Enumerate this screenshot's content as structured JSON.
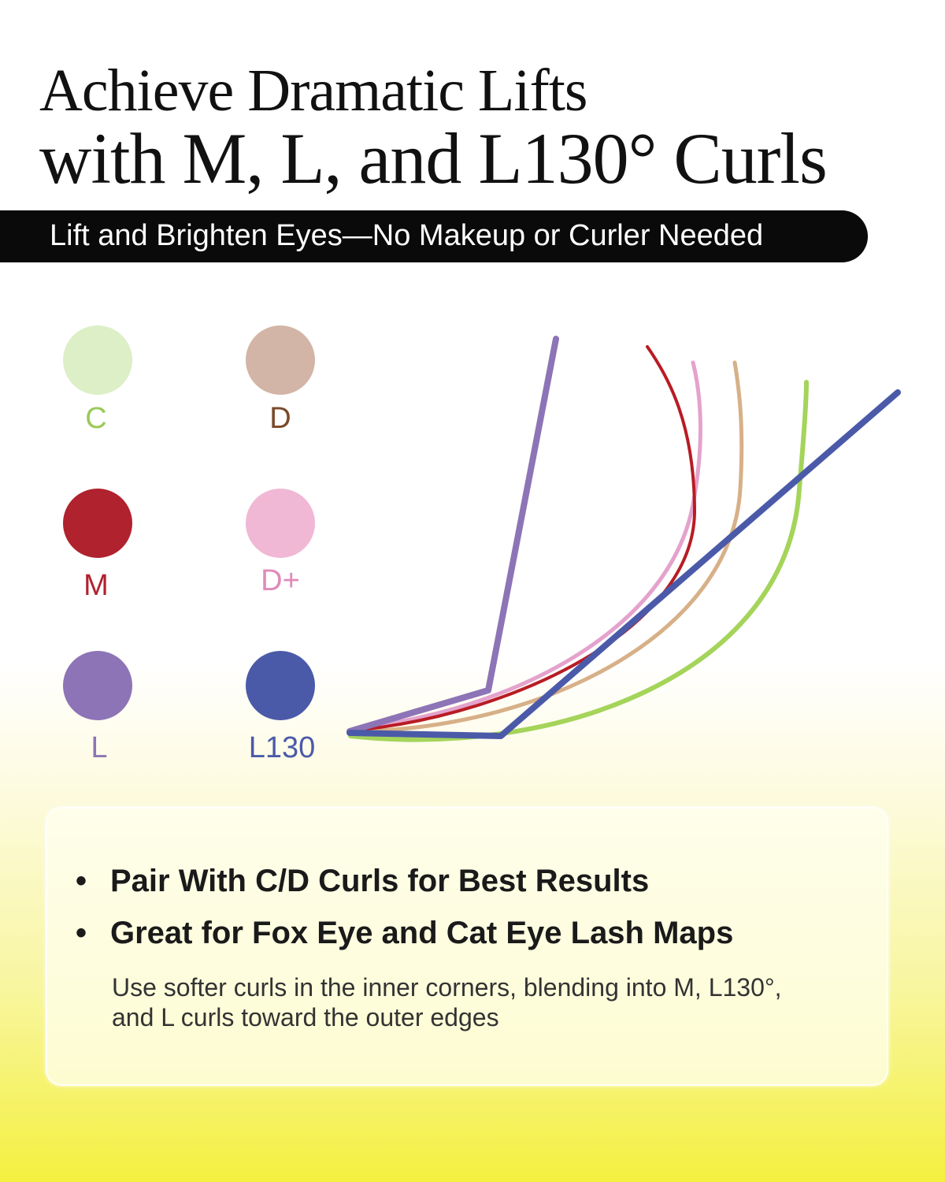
{
  "title": {
    "line1": "Achieve Dramatic Lifts",
    "line2": "with M, L, and L130° Curls"
  },
  "banner": "Lift and Brighten Eyes—No Makeup or Curler Needed",
  "curls": [
    {
      "label": "C",
      "color": "#dcefc6",
      "text_color": "#9bc95a"
    },
    {
      "label": "D",
      "color": "#d2b5a6",
      "text_color": "#7a4a2a"
    },
    {
      "label": "M",
      "color": "#b0222e",
      "text_color": "#b0222e"
    },
    {
      "label": "D+",
      "color": "#f0b8d4",
      "text_color": "#e08ab8"
    },
    {
      "label": "L",
      "color": "#8d74b6",
      "text_color": "#8d74b6"
    },
    {
      "label": "L130",
      "color": "#4b5aa8",
      "text_color": "#4b5aa8"
    }
  ],
  "curve_colors": {
    "C": "#a4d45a",
    "D": "#d7b088",
    "M": "#b81c24",
    "D+": "#e4a2cc",
    "L": "#8d74b6",
    "L130": "#4b5aa8"
  },
  "card": {
    "bullets": [
      "Pair With C/D Curls for Best Results",
      "Great for Fox Eye and Cat Eye Lash Maps"
    ],
    "bullet_symbol": "•",
    "description": "Use softer curls in the inner corners, blending into M, L130°, and L curls toward the outer edges"
  }
}
